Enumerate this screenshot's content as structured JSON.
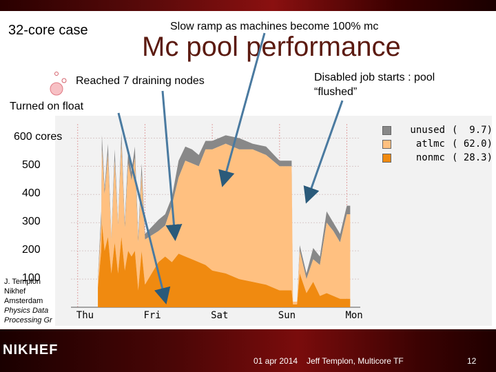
{
  "slide": {
    "case_label": "32-core case",
    "subtitle": "Slow ramp as machines become 100% mc",
    "title": "Mc pool performance",
    "annotation_drain": "Reached 7 draining nodes",
    "annotation_float": "Turned on float",
    "annotation_disabled": "Disabled job starts : pool “flushed”",
    "sidebar": [
      "J. Templon",
      "Nikhef",
      "Amsterdam",
      "Physics Data",
      "Processing Gr"
    ],
    "footer": {
      "logo": "NIKHEF",
      "date": "01 apr 2014",
      "author": "Jeff Templon, Multicore TF",
      "page": "12"
    }
  },
  "chart_data": {
    "type": "area",
    "x_ticks": [
      "Thu",
      "Fri",
      "Sat",
      "Sun",
      "Mon"
    ],
    "y_ticks": [
      "600 cores",
      "500",
      "400",
      "300",
      "200",
      "100"
    ],
    "ylim": [
      0,
      650
    ],
    "legend_placement": "top-right",
    "series": [
      {
        "name": "unused",
        "pct": "9.7",
        "color": "#888888"
      },
      {
        "name": "atlmc",
        "pct": "62.0",
        "color": "#ffc080"
      },
      {
        "name": "nonmc",
        "pct": "28.3",
        "color": "#f08a10"
      }
    ],
    "x": [
      0.3,
      0.35,
      0.36,
      0.4,
      0.45,
      0.5,
      0.55,
      0.6,
      0.65,
      0.7,
      0.75,
      0.8,
      0.85,
      0.9,
      0.95,
      1.0,
      1.2,
      1.3,
      1.4,
      1.5,
      1.6,
      1.7,
      1.8,
      1.9,
      2.0,
      2.2,
      2.4,
      2.6,
      2.8,
      3.0,
      3.1,
      3.18,
      3.2,
      3.26,
      3.3,
      3.4,
      3.5,
      3.6,
      3.7,
      3.8,
      3.9,
      4.0,
      4.05
    ],
    "total": [
      100,
      340,
      610,
      420,
      580,
      250,
      560,
      300,
      620,
      300,
      550,
      480,
      570,
      250,
      510,
      260,
      310,
      330,
      390,
      520,
      570,
      560,
      540,
      590,
      590,
      610,
      600,
      580,
      570,
      520,
      520,
      520,
      20,
      20,
      220,
      120,
      210,
      180,
      340,
      300,
      260,
      360,
      360
    ],
    "used": [
      90,
      300,
      560,
      400,
      540,
      240,
      520,
      290,
      580,
      280,
      510,
      450,
      530,
      230,
      470,
      240,
      270,
      290,
      360,
      460,
      520,
      510,
      500,
      560,
      560,
      580,
      560,
      560,
      540,
      500,
      500,
      500,
      20,
      20,
      200,
      100,
      170,
      150,
      300,
      270,
      230,
      330,
      330
    ],
    "nonmc": [
      70,
      200,
      300,
      200,
      250,
      120,
      230,
      120,
      250,
      130,
      200,
      180,
      200,
      60,
      200,
      80,
      160,
      180,
      160,
      190,
      180,
      170,
      160,
      150,
      130,
      120,
      100,
      90,
      80,
      60,
      60,
      60,
      10,
      10,
      120,
      50,
      90,
      40,
      50,
      40,
      30,
      30,
      30
    ]
  }
}
